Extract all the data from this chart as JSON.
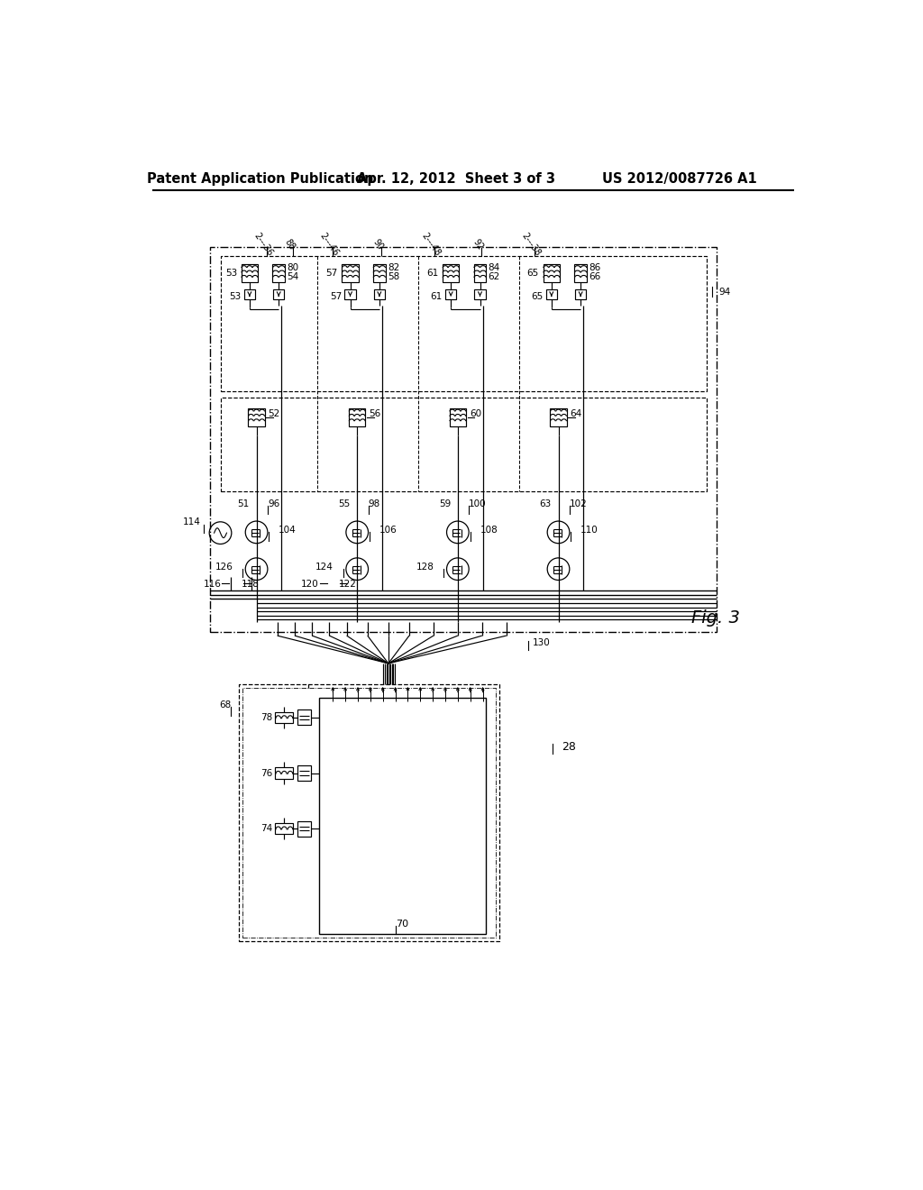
{
  "bg_color": "#ffffff",
  "header_left": "Patent Application Publication",
  "header_mid": "Apr. 12, 2012  Sheet 3 of 3",
  "header_right": "US 2012/0087726 A1",
  "fig_label": "Fig. 3"
}
